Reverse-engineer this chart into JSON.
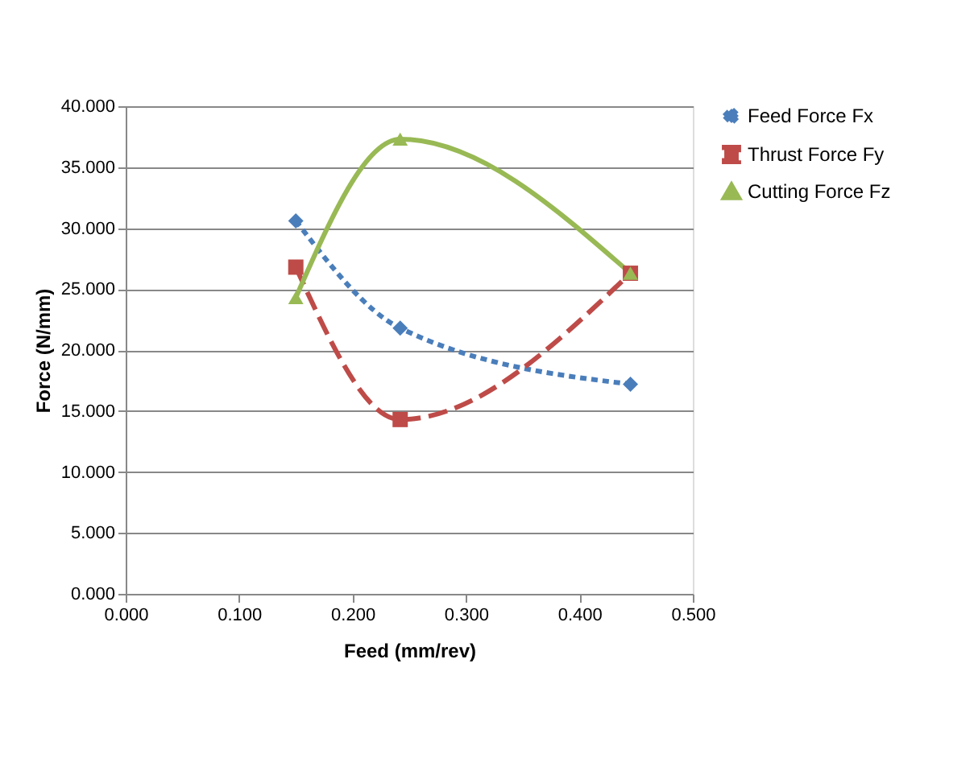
{
  "chart_data": {
    "type": "line",
    "xlabel": "Feed (mm/rev)",
    "ylabel": "Force  (N/mm)",
    "x": [
      0.15,
      0.242,
      0.445
    ],
    "series": [
      {
        "name": "Feed Force Fx",
        "color": "#4a7ebb",
        "values": [
          30.6,
          21.8,
          17.2
        ],
        "marker": "diamond",
        "line_style": "dotted"
      },
      {
        "name": "Thrust Force Fy",
        "color": "#be4b48",
        "values": [
          26.8,
          14.3,
          26.3
        ],
        "marker": "square",
        "line_style": "dashed"
      },
      {
        "name": "Cutting Force Fz",
        "color": "#98b954",
        "values": [
          24.3,
          37.3,
          26.3
        ],
        "marker": "triangle",
        "line_style": "solid"
      }
    ],
    "xlim": [
      0,
      0.5
    ],
    "xticks": [
      {
        "value": 0,
        "label": "0.000"
      },
      {
        "value": 0.1,
        "label": "0.100"
      },
      {
        "value": 0.2,
        "label": "0.200"
      },
      {
        "value": 0.3,
        "label": "0.300"
      },
      {
        "value": 0.4,
        "label": "0.400"
      },
      {
        "value": 0.5,
        "label": "0.500"
      }
    ],
    "ylim": [
      0,
      40
    ],
    "yticks": [
      {
        "value": 0,
        "label": "0.000"
      },
      {
        "value": 5,
        "label": "5.000"
      },
      {
        "value": 10,
        "label": "10.000"
      },
      {
        "value": 15,
        "label": "15.000"
      },
      {
        "value": 20,
        "label": "20.000"
      },
      {
        "value": 25,
        "label": "25.000"
      },
      {
        "value": 30,
        "label": "30.000"
      },
      {
        "value": 35,
        "label": "35.000"
      },
      {
        "value": 40,
        "label": "40.000"
      }
    ],
    "grid": "y",
    "legend": "right"
  }
}
